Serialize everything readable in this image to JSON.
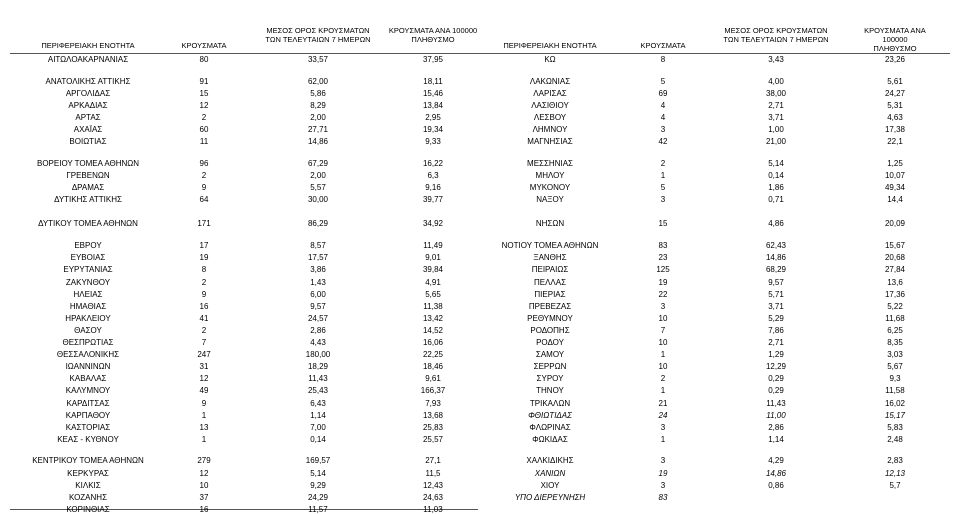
{
  "table": {
    "columns": [
      "ΠΕΡΙΦΕΡΕΙΑΚΗ ΕΝΟΤΗΤΑ",
      "ΚΡΟΥΣΜΑΤΑ",
      "ΜΕΣΟΣ ΟΡΟΣ ΚΡΟΥΣΜΑΤΩΝ\nΤΩΝ ΤΕΛΕΥΤΑΙΩΝ 7 ΗΜΕΡΩΝ",
      "ΚΡΟΥΣΜΑΤΑ ΑΝΑ 100000\nΠΛΗΘΥΣΜΟ",
      "ΠΕΡΙΦΕΡΕΙΑΚΗ ΕΝΟΤΗΤΑ",
      "ΚΡΟΥΣΜΑΤΑ",
      "ΜΕΣΟΣ ΟΡΟΣ ΚΡΟΥΣΜΑΤΩΝ\nΤΩΝ ΤΕΛΕΥΤΑΙΩΝ 7 ΗΜΕΡΩΝ",
      "ΚΡΟΥΣΜΑΤΑ ΑΝΑ 100000\nΠΛΗΘΥΣΜΟ"
    ],
    "rows": [
      [
        "ΑΙΤΩΛΟΑΚΑΡΝΑΝΙΑΣ",
        "80",
        "33,57",
        "37,95",
        "ΚΩ",
        "8",
        "3,43",
        "23,26"
      ],
      [
        "ΑΝΑΤΟΛΙΚΗΣ ΑΤΤΙΚΗΣ",
        "91",
        "62,00",
        "18,11",
        "ΛΑΚΩΝΙΑΣ",
        "5",
        "4,00",
        "5,61"
      ],
      [
        "ΑΡΓΟΛΙΔΑΣ",
        "15",
        "5,86",
        "15,46",
        "ΛΑΡΙΣΑΣ",
        "69",
        "38,00",
        "24,27"
      ],
      [
        "ΑΡΚΑΔΙΑΣ",
        "12",
        "8,29",
        "13,84",
        "ΛΑΣΙΘΙΟΥ",
        "4",
        "2,71",
        "5,31"
      ],
      [
        "ΑΡΤΑΣ",
        "2",
        "2,00",
        "2,95",
        "ΛΕΣΒΟΥ",
        "4",
        "3,71",
        "4,63"
      ],
      [
        "ΑΧΑΪΑΣ",
        "60",
        "27,71",
        "19,34",
        "ΛΗΜΝΟΥ",
        "3",
        "1,00",
        "17,38"
      ],
      [
        "ΒΟΙΩΤΙΑΣ",
        "11",
        "14,86",
        "9,33",
        "ΜΑΓΝΗΣΙΑΣ",
        "42",
        "21,00",
        "22,1"
      ],
      [
        "ΒΟΡΕΙΟΥ ΤΟΜΕΑ ΑΘΗΝΩΝ",
        "96",
        "67,29",
        "16,22",
        "ΜΕΣΣΗΝΙΑΣ",
        "2",
        "5,14",
        "1,25"
      ],
      [
        "ΓΡΕΒΕΝΩΝ",
        "2",
        "2,00",
        "6,3",
        "ΜΗΛΟΥ",
        "1",
        "0,14",
        "10,07"
      ],
      [
        "ΔΡΑΜΑΣ",
        "9",
        "5,57",
        "9,16",
        "ΜΥΚΟΝΟΥ",
        "5",
        "1,86",
        "49,34"
      ],
      [
        "ΔΥΤΙΚΗΣ ΑΤΤΙΚΗΣ",
        "64",
        "30,00",
        "39,77",
        "ΝΑΞΟΥ",
        "3",
        "0,71",
        "14,4"
      ],
      [
        "ΔΥΤΙΚΟΥ ΤΟΜΕΑ ΑΘΗΝΩΝ",
        "171",
        "86,29",
        "34,92",
        "ΝΗΣΩΝ",
        "15",
        "4,86",
        "20,09"
      ],
      [
        "ΕΒΡΟΥ",
        "17",
        "8,57",
        "11,49",
        "ΝΟΤΙΟΥ ΤΟΜΕΑ ΑΘΗΝΩΝ",
        "83",
        "62,43",
        "15,67"
      ],
      [
        "ΕΥΒΟΙΑΣ",
        "19",
        "17,57",
        "9,01",
        "ΞΑΝΘΗΣ",
        "23",
        "14,86",
        "20,68"
      ],
      [
        "ΕΥΡΥΤΑΝΙΑΣ",
        "8",
        "3,86",
        "39,84",
        "ΠΕΙΡΑΙΩΣ",
        "125",
        "68,29",
        "27,84"
      ],
      [
        "ΖΑΚΥΝΘΟΥ",
        "2",
        "1,43",
        "4,91",
        "ΠΕΛΛΑΣ",
        "19",
        "9,57",
        "13,6"
      ],
      [
        "ΗΛΕΙΑΣ",
        "9",
        "6,00",
        "5,65",
        "ΠΙΕΡΙΑΣ",
        "22",
        "5,71",
        "17,36"
      ],
      [
        "ΗΜΑΘΙΑΣ",
        "16",
        "9,57",
        "11,38",
        "ΠΡΕΒΕΖΑΣ",
        "3",
        "3,71",
        "5,22"
      ],
      [
        "ΗΡΑΚΛΕΙΟΥ",
        "41",
        "24,57",
        "13,42",
        "ΡΕΘΥΜΝΟΥ",
        "10",
        "5,29",
        "11,68"
      ],
      [
        "ΘΑΣΟΥ",
        "2",
        "2,86",
        "14,52",
        "ΡΟΔΟΠΗΣ",
        "7",
        "7,86",
        "6,25"
      ],
      [
        "ΘΕΣΠΡΩΤΙΑΣ",
        "7",
        "4,43",
        "16,06",
        "ΡΟΔΟΥ",
        "10",
        "2,71",
        "8,35"
      ],
      [
        "ΘΕΣΣΑΛΟΝΙΚΗΣ",
        "247",
        "180,00",
        "22,25",
        "ΣΑΜΟΥ",
        "1",
        "1,29",
        "3,03"
      ],
      [
        "ΙΩΑΝΝΙΝΩΝ",
        "31",
        "18,29",
        "18,46",
        "ΣΕΡΡΩΝ",
        "10",
        "12,29",
        "5,67"
      ],
      [
        "ΚΑΒΑΛΑΣ",
        "12",
        "11,43",
        "9,61",
        "ΣΥΡΟΥ",
        "2",
        "0,29",
        "9,3"
      ],
      [
        "ΚΑΛΥΜΝΟΥ",
        "49",
        "25,43",
        "166,37",
        "ΤΗΝΟΥ",
        "1",
        "0,29",
        "11,58"
      ],
      [
        "ΚΑΡΔΙΤΣΑΣ",
        "9",
        "6,43",
        "7,93",
        "ΤΡΙΚΑΛΩΝ",
        "21",
        "11,43",
        "16,02"
      ],
      [
        "ΚΑΡΠΑΘΟΥ",
        "1",
        "1,14",
        "13,68",
        "ΦΘΙΩΤΙΔΑΣ",
        "24",
        "11,00",
        "15,17"
      ],
      [
        "ΚΑΣΤΟΡΙΑΣ",
        "13",
        "7,00",
        "25,83",
        "ΦΛΩΡΙΝΑΣ",
        "3",
        "2,86",
        "5,83"
      ],
      [
        "ΚΕΑΣ - ΚΥΘΝΟΥ",
        "1",
        "0,14",
        "25,57",
        "ΦΩΚΙΔΑΣ",
        "1",
        "1,14",
        "2,48"
      ],
      [
        "ΚΕΝΤΡΙΚΟΥ ΤΟΜΕΑ ΑΘΗΝΩΝ",
        "279",
        "169,57",
        "27,1",
        "ΧΑΛΚΙΔΙΚΗΣ",
        "3",
        "4,29",
        "2,83"
      ],
      [
        "ΚΕΡΚΥΡΑΣ",
        "12",
        "5,14",
        "11,5",
        "ΧΑΝΙΩΝ",
        "19",
        "14,86",
        "12,13"
      ],
      [
        "ΚΙΛΚΙΣ",
        "10",
        "9,29",
        "12,43",
        "ΧΙΟΥ",
        "3",
        "0,86",
        "5,7"
      ],
      [
        "ΚΟΖΑΝΗΣ",
        "37",
        "24,29",
        "24,63",
        "ΥΠΟ ΔΙΕΡΕΥΝΗΣΗ",
        "83",
        null,
        null
      ],
      [
        "ΚΟΡΙΝΘΙΑΣ",
        "16",
        "11,57",
        "11,03",
        null,
        null,
        null,
        null
      ]
    ]
  }
}
